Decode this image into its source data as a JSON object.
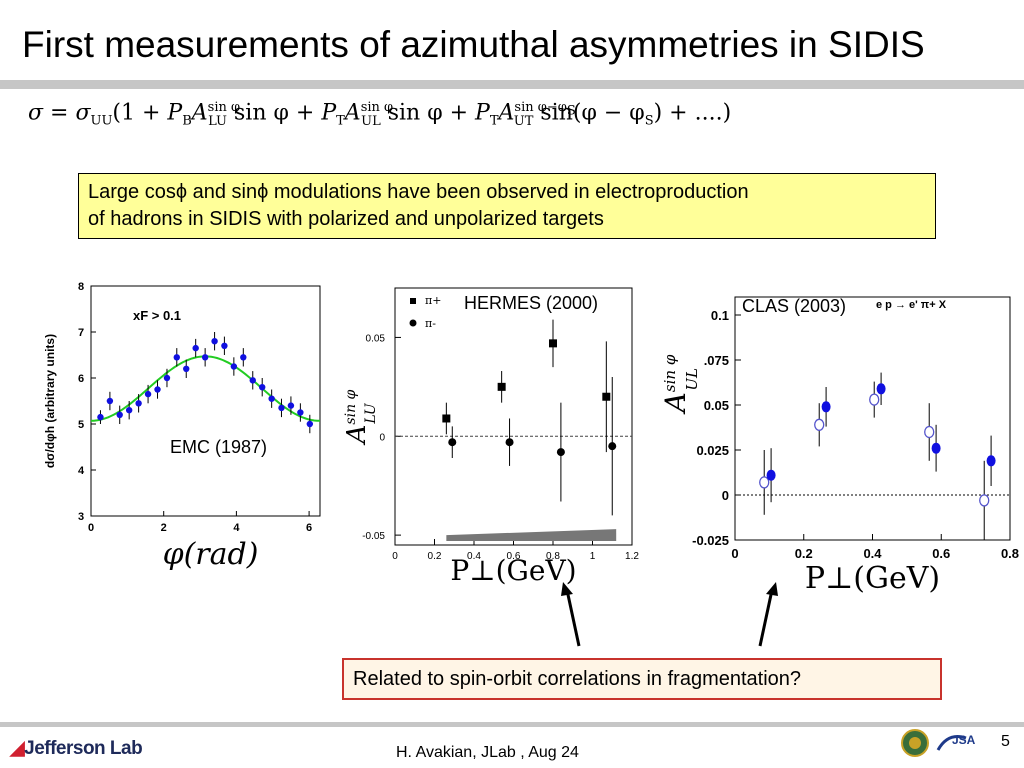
{
  "slide": {
    "title": "First measurements of azimuthal asymmetries in SIDIS",
    "formula": "σ = σ_UU(1 + P_B A_LU^{sin φ} sin φ + P_T A_UL^{sin φ} sin φ + P_T A_UT^{sin φ−φ_S} sin(φ − φ_S) + ....)",
    "callout": {
      "line1": "Large cosϕ and sinϕ modulations have been observed in electroproduction",
      "line2": "of hadrons in SIDIS with polarized and unpolarized targets"
    },
    "question": "Related to spin-orbit correlations in fragmentation?",
    "footer": "H. Avakian, JLab ,  Aug 24",
    "page_number": "5",
    "logo_text": "Jefferson Lab",
    "colors": {
      "title_rule": "#c6c6c6",
      "callout_bg": "#ffff99",
      "answer_border": "#c8332c",
      "blue": "#1010e0",
      "green": "#22cc22"
    }
  },
  "chart_data": [
    {
      "type": "scatter",
      "caption": "EMC (1987)",
      "ylabel": "dσ/dφh (arbitrary units)",
      "xlabel": "φ(rad)",
      "annotation": "xF > 0.1",
      "xlim": [
        0,
        6.3
      ],
      "ylim": [
        3,
        8
      ],
      "xticks": [
        "0",
        "2",
        "4",
        "6"
      ],
      "yticks": [
        "3",
        "4",
        "5",
        "6",
        "7",
        "8"
      ],
      "x": [
        0.26,
        0.52,
        0.79,
        1.05,
        1.31,
        1.57,
        1.83,
        2.09,
        2.36,
        2.62,
        2.88,
        3.14,
        3.4,
        3.67,
        3.93,
        4.19,
        4.45,
        4.71,
        4.97,
        5.24,
        5.5,
        5.76,
        6.02
      ],
      "y": [
        5.15,
        5.5,
        5.2,
        5.3,
        5.45,
        5.65,
        5.75,
        6.0,
        6.45,
        6.2,
        6.65,
        6.45,
        6.8,
        6.7,
        6.25,
        6.45,
        5.95,
        5.8,
        5.55,
        5.35,
        5.4,
        5.25,
        5.0
      ],
      "err": [
        0.15,
        0.2,
        0.2,
        0.2,
        0.2,
        0.2,
        0.2,
        0.2,
        0.2,
        0.2,
        0.2,
        0.2,
        0.2,
        0.2,
        0.2,
        0.2,
        0.2,
        0.2,
        0.2,
        0.2,
        0.2,
        0.2,
        0.2
      ],
      "fit": "5.77 - 0.70*cos(x)"
    },
    {
      "type": "scatter",
      "caption": "HERMES (2000)",
      "ylabel": "A_LU^{sin φ}",
      "xlabel": "P⊥(GeV)",
      "xlim": [
        0,
        1.2
      ],
      "ylim": [
        -0.055,
        0.075
      ],
      "xticks": [
        "0",
        "0.2",
        "0.4",
        "0.6",
        "0.8",
        "1",
        "1.2"
      ],
      "yticks": [
        "-0.05",
        "0",
        "0.05"
      ],
      "legend": [
        "π+",
        "π-"
      ],
      "series": [
        {
          "name": "π+",
          "x": [
            0.26,
            0.54,
            0.8,
            1.07
          ],
          "y": [
            0.009,
            0.025,
            0.047,
            0.02
          ],
          "err": [
            0.008,
            0.008,
            0.012,
            0.028
          ]
        },
        {
          "name": "π-",
          "x": [
            0.29,
            0.58,
            0.84,
            1.1
          ],
          "y": [
            -0.003,
            -0.003,
            -0.008,
            -0.005
          ],
          "err": [
            0.008,
            0.012,
            0.025,
            0.035
          ]
        }
      ],
      "band": {
        "x": [
          0.26,
          1.12
        ],
        "low": [
          -0.053,
          -0.053
        ],
        "high": [
          -0.05,
          -0.047
        ]
      }
    },
    {
      "type": "scatter",
      "caption": "CLAS (2003)",
      "annotation": "e p → e' π+ X",
      "ylabel": "A_UL^{sin φ}",
      "xlabel": "P⊥(GeV)",
      "xlim": [
        0,
        0.8
      ],
      "ylim": [
        -0.025,
        0.11
      ],
      "xticks": [
        "0",
        "0.2",
        "0.4",
        "0.6",
        "0.8"
      ],
      "yticks": [
        "-0.025",
        "0",
        "0.025",
        "0.05",
        ".075",
        "0.1"
      ],
      "series": [
        {
          "name": "open",
          "x": [
            0.085,
            0.245,
            0.405,
            0.565,
            0.725
          ],
          "y": [
            0.007,
            0.039,
            0.053,
            0.035,
            -0.003
          ],
          "err": [
            0.018,
            0.012,
            0.01,
            0.016,
            0.022
          ]
        },
        {
          "name": "filled",
          "x": [
            0.105,
            0.265,
            0.425,
            0.585,
            0.745
          ],
          "y": [
            0.011,
            0.049,
            0.059,
            0.026,
            0.019
          ],
          "err": [
            0.015,
            0.011,
            0.009,
            0.013,
            0.014
          ]
        }
      ]
    }
  ]
}
